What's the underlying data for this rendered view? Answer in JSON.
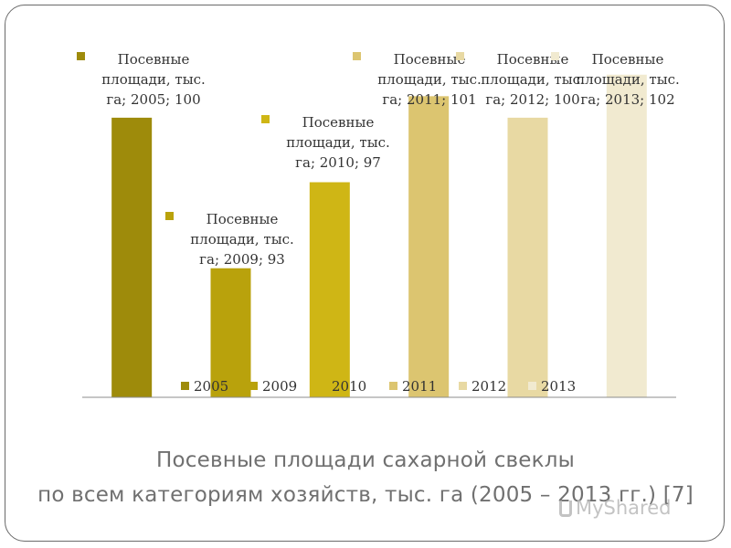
{
  "chart_data": {
    "type": "bar",
    "categories": [
      "2005",
      "2009",
      "2010",
      "2011",
      "2012",
      "2013"
    ],
    "series": [
      {
        "name": "Посевные площади, тыс. га",
        "values": [
          100,
          93,
          97,
          101,
          100,
          102
        ]
      }
    ],
    "data_labels": [
      "Посевные площади, тыс. га; 2005; 100",
      "Посевные площади, тыс. га; 2009; 93",
      "Посевные площади, тыс. га; 2010; 97",
      "Посевные площади, тыс. га; 2011; 101",
      "Посевные площади, тыс. га; 2012; 100",
      "Посевные площади, тыс. га; 2013; 102"
    ],
    "legend": [
      "2005",
      "2009",
      "2010",
      "2011",
      "2012",
      "2013"
    ],
    "legend_position": "bottom",
    "colors": [
      "#9e8b0b",
      "#b9a20c",
      "#cfb615",
      "#dcc570",
      "#e8d9a3",
      "#f1ead0"
    ],
    "ylim": [
      87,
      102.5
    ],
    "grid": false
  },
  "slide": {
    "title_line1": "Посевные площади сахарной свеклы",
    "title_line2": "по всем категориям хозяйств, тыс. га (2005 – 2013 гг.) [7]",
    "watermark": "MyShared"
  }
}
